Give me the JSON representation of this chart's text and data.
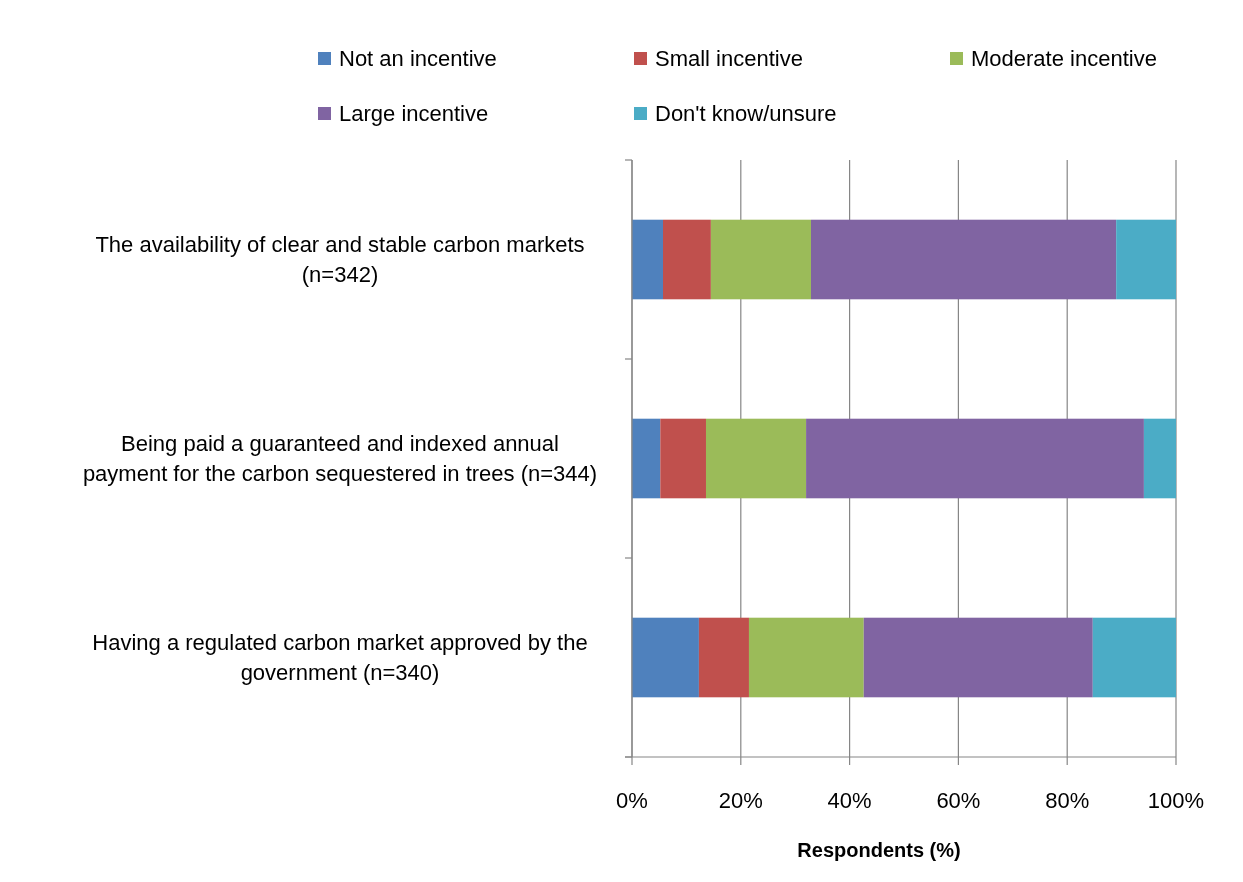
{
  "chart_data": {
    "type": "bar",
    "orientation": "horizontal",
    "stacked": true,
    "categories": [
      "The availability of clear and stable carbon markets (n=342)",
      "Being paid a guaranteed and indexed annual payment for the carbon sequestered in trees (n=344)",
      "Having a regulated carbon market approved by the government (n=340)"
    ],
    "series": [
      {
        "name": "Not an incentive",
        "color": "#4f81bd",
        "values": [
          5.7,
          5.2,
          12.3
        ]
      },
      {
        "name": "Small incentive",
        "color": "#c0504d",
        "values": [
          8.8,
          8.4,
          9.2
        ]
      },
      {
        "name": "Moderate incentive",
        "color": "#9bbb59",
        "values": [
          18.4,
          18.4,
          21.1
        ]
      },
      {
        "name": "Large incentive",
        "color": "#8064a2",
        "values": [
          56.1,
          62.1,
          42.1
        ]
      },
      {
        "name": "Don't know/unsure",
        "color": "#4bacc6",
        "values": [
          11.0,
          5.9,
          15.3
        ]
      }
    ],
    "xlabel": "Respondents (%)",
    "xlim": [
      0,
      100
    ],
    "xticks": [
      {
        "value": 0,
        "label": "0%"
      },
      {
        "value": 20,
        "label": "20%"
      },
      {
        "value": 40,
        "label": "40%"
      },
      {
        "value": 60,
        "label": "60%"
      },
      {
        "value": 80,
        "label": "80%"
      },
      {
        "value": 100,
        "label": "100%"
      }
    ],
    "grid": "x",
    "legend": "top"
  }
}
